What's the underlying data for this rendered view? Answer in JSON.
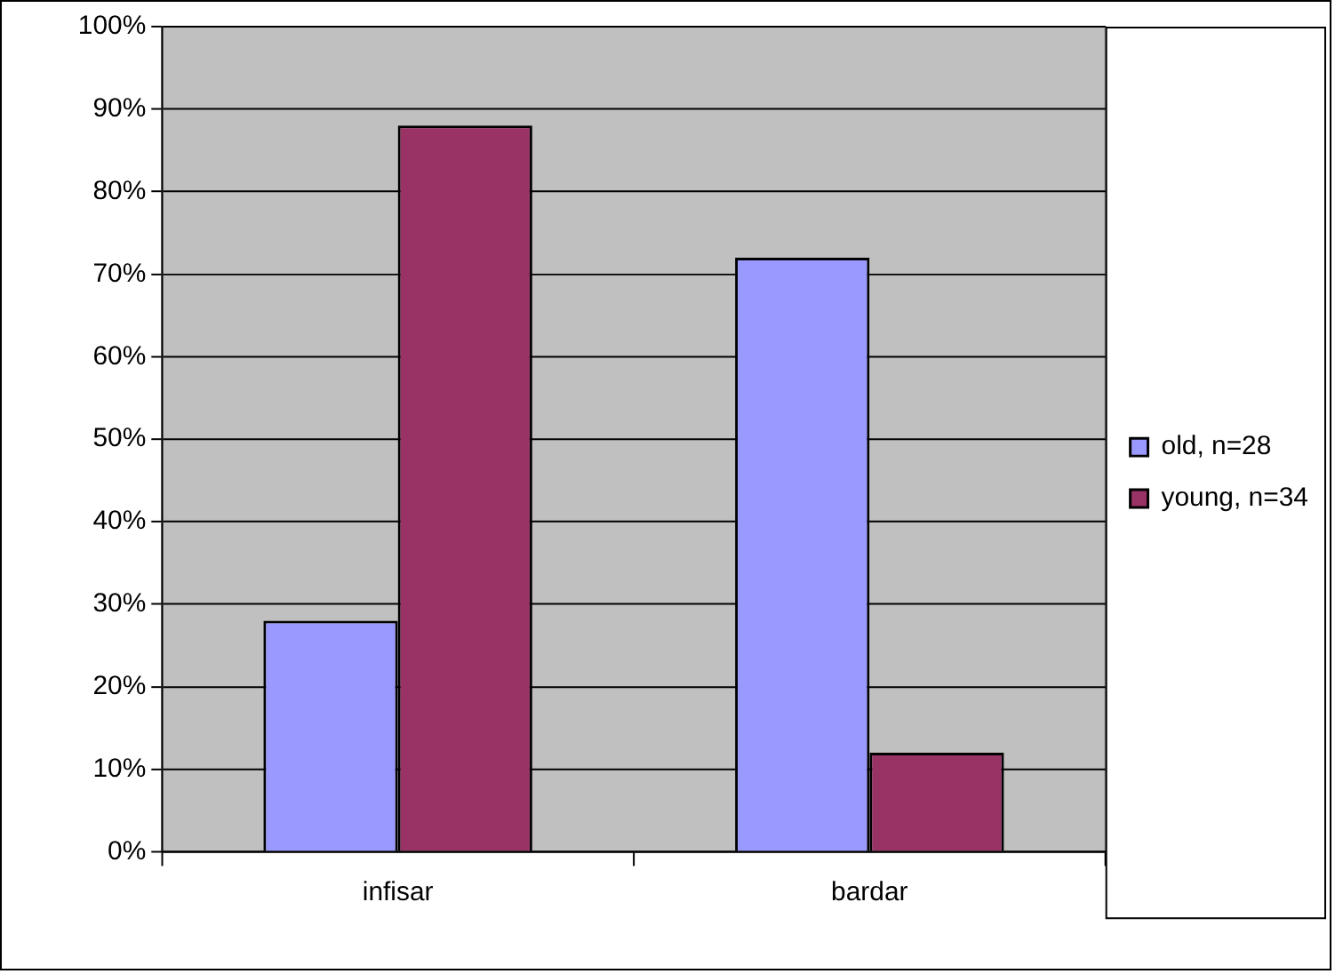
{
  "chart_data": {
    "type": "bar",
    "categories": [
      "infisar",
      "bardar"
    ],
    "series": [
      {
        "name": "old, n=28",
        "color": "#9999ff",
        "values": [
          28,
          72
        ]
      },
      {
        "name": "young, n=34",
        "color": "#993366",
        "values": [
          88,
          12
        ]
      }
    ],
    "ylim": [
      0,
      100
    ],
    "yticks": [
      {
        "value": 0,
        "label": "0%"
      },
      {
        "value": 10,
        "label": "10%"
      },
      {
        "value": 20,
        "label": "20%"
      },
      {
        "value": 30,
        "label": "30%"
      },
      {
        "value": 40,
        "label": "40%"
      },
      {
        "value": 50,
        "label": "50%"
      },
      {
        "value": 60,
        "label": "60%"
      },
      {
        "value": 70,
        "label": "70%"
      },
      {
        "value": 80,
        "label": "80%"
      },
      {
        "value": 90,
        "label": "90%"
      },
      {
        "value": 100,
        "label": "100%"
      }
    ],
    "grid": "y",
    "legend": "right"
  }
}
